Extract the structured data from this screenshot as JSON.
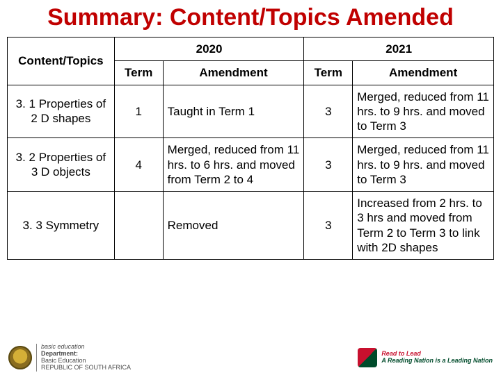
{
  "title": "Summary: Content/Topics Amended",
  "table": {
    "header_top": {
      "col1": "Content/Topics",
      "col2": "2020",
      "col3": "2021"
    },
    "header_sub": {
      "t1": "Term",
      "a1": "Amendment",
      "t2": "Term",
      "a2": "Amendment"
    },
    "rows": [
      {
        "topic": "3. 1 Properties of 2 D shapes",
        "term2020": "1",
        "amend2020": "Taught in Term 1",
        "term2021": "3",
        "amend2021": "Merged, reduced from 11 hrs. to 9 hrs. and moved to Term 3"
      },
      {
        "topic": "3. 2 Properties  of 3 D objects",
        "term2020": "4",
        "amend2020": "Merged, reduced from 11 hrs.  to 6 hrs. and moved from Term 2 to 4",
        "term2021": "3",
        "amend2021": "Merged, reduced from 11 hrs. to 9 hrs. and moved to Term 3"
      },
      {
        "topic": "3. 3 Symmetry",
        "term2020": "",
        "amend2020": "Removed",
        "term2021": "3",
        "amend2021": "Increased from 2 hrs. to 3 hrs and moved from Term 2 to Term 3 to link with 2D shapes"
      }
    ]
  },
  "footer": {
    "dept_line1": "basic education",
    "dept_line2": "Department:",
    "dept_line3": "Basic Education",
    "dept_line4": "REPUBLIC OF SOUTH AFRICA",
    "rl_line1": "Read to Lead",
    "rl_line2": "A Reading Nation is a Leading Nation"
  },
  "colors": {
    "title": "#c00000",
    "border": "#000000",
    "bg": "#ffffff"
  }
}
